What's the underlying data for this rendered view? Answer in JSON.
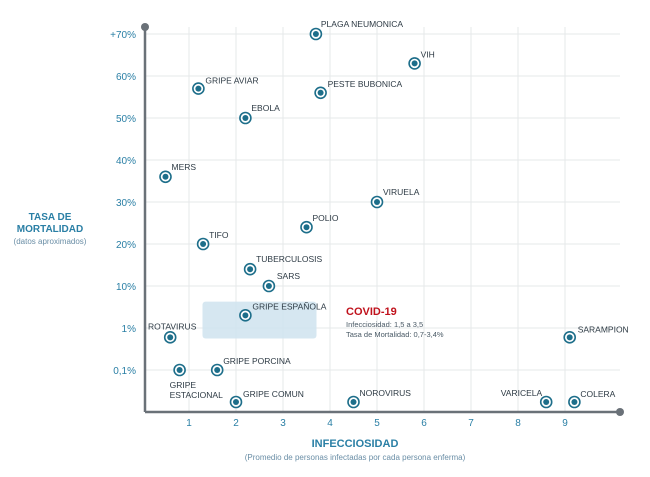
{
  "chart_data": {
    "type": "scatter",
    "title": "",
    "ylabel": "TASA DE MORTALIDAD",
    "ylabel_sub": "(datos aproximados)",
    "xlabel": "INFECCIOSIDAD",
    "xlabel_sub": "(Promedio de personas infectadas por cada persona enferma)",
    "x_ticks": [
      "1",
      "2",
      "3",
      "4",
      "5",
      "6",
      "7",
      "8",
      "9"
    ],
    "y_ticks": [
      "+70%",
      "60%",
      "50%",
      "40%",
      "30%",
      "20%",
      "10%",
      "1%",
      "0,1%"
    ],
    "points": [
      {
        "label": "PLAGA NEUMONICA",
        "x": 3.7,
        "y": "+70%"
      },
      {
        "label": "VIH",
        "x": 5.8,
        "y": "63%"
      },
      {
        "label": "GRIPE AVIAR",
        "x": 1.2,
        "y": "57%"
      },
      {
        "label": "PESTE BUBONICA",
        "x": 3.8,
        "y": "56%"
      },
      {
        "label": "EBOLA",
        "x": 2.2,
        "y": "50%"
      },
      {
        "label": "MERS",
        "x": 0.5,
        "y": "36%"
      },
      {
        "label": "VIRUELA",
        "x": 5.0,
        "y": "30%"
      },
      {
        "label": "POLIO",
        "x": 3.5,
        "y": "24%"
      },
      {
        "label": "TIFO",
        "x": 1.3,
        "y": "20%"
      },
      {
        "label": "TUBERCULOSIS",
        "x": 2.3,
        "y": "14%"
      },
      {
        "label": "SARS",
        "x": 2.7,
        "y": "10%"
      },
      {
        "label": "GRIPE ESPAÑOLA",
        "x": 2.2,
        "y": "2%"
      },
      {
        "label": "ROTAVIRUS",
        "x": 0.6,
        "y": "0,6%"
      },
      {
        "label": "SARAMPION",
        "x": 9.1,
        "y": "0,6%"
      },
      {
        "label": "GRIPE ESTACIONAL",
        "x": 0.8,
        "y": "0,1%"
      },
      {
        "label": "GRIPE PORCINA",
        "x": 1.6,
        "y": "0,1%"
      },
      {
        "label": "COLERA",
        "x": 9.2,
        "y": "<0,1%"
      },
      {
        "label": "NOROVIRUS",
        "x": 4.5,
        "y": "<0,1%"
      },
      {
        "label": "GRIPE COMUN",
        "x": 2.0,
        "y": "<0,1%"
      },
      {
        "label": "VARICELA",
        "x": 8.6,
        "y": "<0,1%"
      }
    ],
    "highlight": {
      "label": "COVID-19",
      "line1": "Infecciosidad: 1,5 a 3,5",
      "line2": "Tasa de Mortalidad: 0,7-3,4%",
      "x_range": [
        1.5,
        3.5
      ],
      "y_range": [
        "0,7%",
        "3,4%"
      ],
      "color": "#c0121c"
    },
    "colors": {
      "axis": "#6a7178",
      "grid": "#e6e8ea",
      "accent": "#2a7fa5",
      "marker": "#1d6e8a",
      "highlight_fill": "#cfe3ee"
    }
  }
}
